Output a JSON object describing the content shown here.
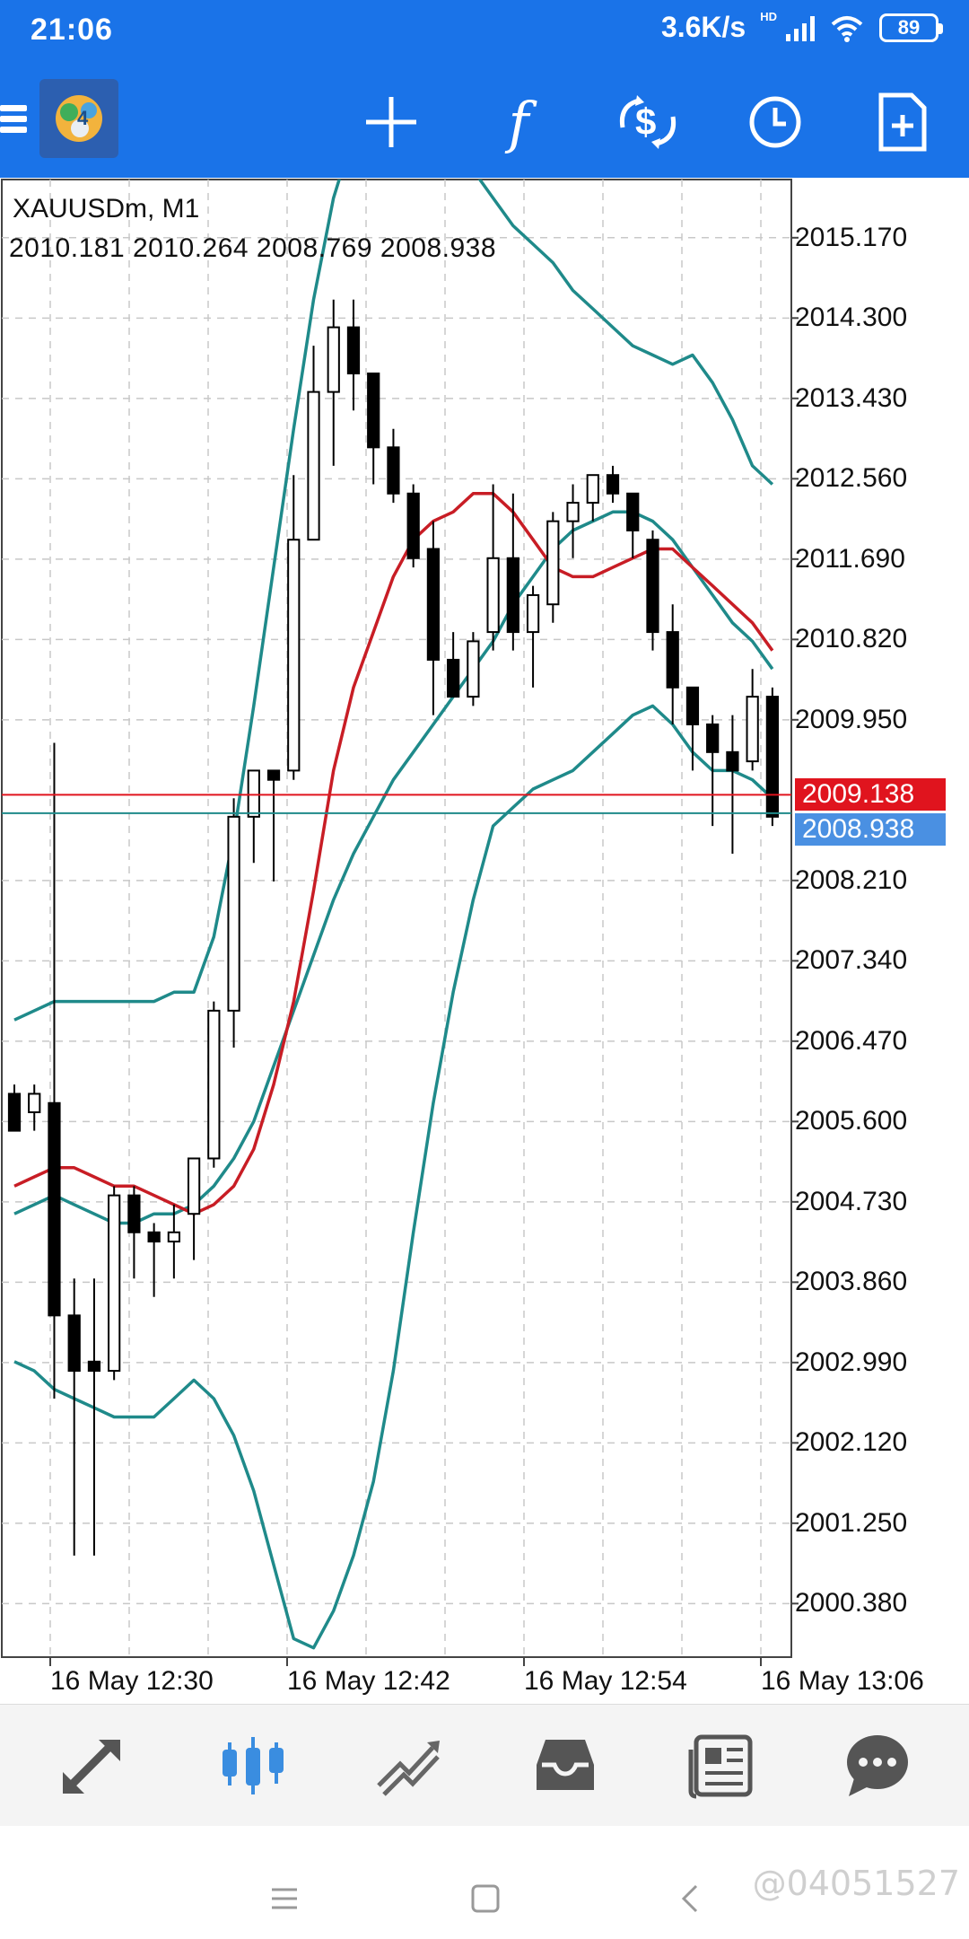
{
  "status_bar": {
    "time": "21:06",
    "net_speed": "3.6K/s",
    "hd": "HD",
    "battery": "89"
  },
  "toolbar": {
    "icons": [
      "menu-icon",
      "app-logo",
      "crosshair-icon",
      "function-icon",
      "trade-dollar-icon",
      "clock-icon",
      "new-document-icon"
    ],
    "function_glyph": "f"
  },
  "chart_header": {
    "symbol": "XAUUSDm, M1",
    "ohlc": "2010.181 2010.264 2008.769 2008.938"
  },
  "price_axis": {
    "labels": [
      "2015.170",
      "2014.300",
      "2013.430",
      "2012.560",
      "2011.690",
      "2010.820",
      "2009.950",
      "2008.210",
      "2007.340",
      "2006.470",
      "2005.600",
      "2004.730",
      "2003.860",
      "2002.990",
      "2002.120",
      "2001.250",
      "2000.380"
    ],
    "ask_tag": "2009.138",
    "bid_tag": "2008.938"
  },
  "time_axis": {
    "labels": [
      "16 May 12:30",
      "16 May 12:42",
      "16 May 12:54",
      "16 May 13:06"
    ]
  },
  "colors": {
    "header_blue": "#1a73e8",
    "bollinger": "#1f8a8a",
    "ma_red": "#c81d25",
    "ask_red": "#e0141e",
    "bid_blue": "#4a90e2"
  },
  "bottom_nav": {
    "items": [
      "quotes-icon",
      "chart-icon",
      "trade-icon",
      "history-icon",
      "news-icon",
      "chat-icon"
    ],
    "active": "chart-icon"
  },
  "system_nav": {
    "items": [
      "menu-icon",
      "home-icon",
      "back-icon"
    ]
  },
  "watermark": "@04051527",
  "chart_data": {
    "type": "candlestick",
    "title": "XAUUSDm, M1",
    "ylim": [
      1999.8,
      2015.8
    ],
    "x_ticks": [
      "16 May 12:30",
      "16 May 12:42",
      "16 May 12:54",
      "16 May 13:06"
    ],
    "candles": [
      {
        "o": 2005.9,
        "h": 2006.0,
        "l": 2005.5,
        "c": 2005.5
      },
      {
        "o": 2005.7,
        "h": 2006.0,
        "l": 2005.5,
        "c": 2005.9
      },
      {
        "o": 2005.8,
        "h": 2009.7,
        "l": 2002.6,
        "c": 2003.5
      },
      {
        "o": 2003.5,
        "h": 2003.9,
        "l": 2000.9,
        "c": 2002.9
      },
      {
        "o": 2003.0,
        "h": 2003.9,
        "l": 2000.9,
        "c": 2002.9
      },
      {
        "o": 2002.9,
        "h": 2004.9,
        "l": 2002.8,
        "c": 2004.8
      },
      {
        "o": 2004.8,
        "h": 2004.9,
        "l": 2003.9,
        "c": 2004.4
      },
      {
        "o": 2004.4,
        "h": 2004.5,
        "l": 2003.7,
        "c": 2004.3
      },
      {
        "o": 2004.3,
        "h": 2004.7,
        "l": 2003.9,
        "c": 2004.4
      },
      {
        "o": 2004.6,
        "h": 2005.2,
        "l": 2004.1,
        "c": 2005.2
      },
      {
        "o": 2005.2,
        "h": 2006.9,
        "l": 2005.1,
        "c": 2006.8
      },
      {
        "o": 2006.8,
        "h": 2009.1,
        "l": 2006.4,
        "c": 2008.9
      },
      {
        "o": 2008.9,
        "h": 2009.3,
        "l": 2008.4,
        "c": 2009.4
      },
      {
        "o": 2009.4,
        "h": 2009.4,
        "l": 2008.2,
        "c": 2009.3
      },
      {
        "o": 2009.4,
        "h": 2012.6,
        "l": 2009.3,
        "c": 2011.9
      },
      {
        "o": 2011.9,
        "h": 2014.0,
        "l": 2011.9,
        "c": 2013.5
      },
      {
        "o": 2013.5,
        "h": 2014.5,
        "l": 2012.7,
        "c": 2014.2
      },
      {
        "o": 2014.2,
        "h": 2014.5,
        "l": 2013.3,
        "c": 2013.7
      },
      {
        "o": 2013.7,
        "h": 2013.7,
        "l": 2012.5,
        "c": 2012.9
      },
      {
        "o": 2012.9,
        "h": 2013.1,
        "l": 2012.3,
        "c": 2012.4
      },
      {
        "o": 2012.4,
        "h": 2012.5,
        "l": 2011.6,
        "c": 2011.7
      },
      {
        "o": 2011.8,
        "h": 2012.1,
        "l": 2010.0,
        "c": 2010.6
      },
      {
        "o": 2010.6,
        "h": 2010.9,
        "l": 2010.2,
        "c": 2010.2
      },
      {
        "o": 2010.2,
        "h": 2010.9,
        "l": 2010.1,
        "c": 2010.8
      },
      {
        "o": 2010.9,
        "h": 2012.5,
        "l": 2010.7,
        "c": 2011.7
      },
      {
        "o": 2011.7,
        "h": 2012.4,
        "l": 2010.7,
        "c": 2010.9
      },
      {
        "o": 2010.9,
        "h": 2011.4,
        "l": 2010.3,
        "c": 2011.3
      },
      {
        "o": 2011.2,
        "h": 2012.2,
        "l": 2011.0,
        "c": 2012.1
      },
      {
        "o": 2012.1,
        "h": 2012.5,
        "l": 2011.7,
        "c": 2012.3
      },
      {
        "o": 2012.3,
        "h": 2012.6,
        "l": 2012.1,
        "c": 2012.6
      },
      {
        "o": 2012.6,
        "h": 2012.7,
        "l": 2012.3,
        "c": 2012.4
      },
      {
        "o": 2012.4,
        "h": 2012.4,
        "l": 2011.7,
        "c": 2012.0
      },
      {
        "o": 2011.9,
        "h": 2012.0,
        "l": 2010.7,
        "c": 2010.9
      },
      {
        "o": 2010.9,
        "h": 2011.2,
        "l": 2009.9,
        "c": 2010.3
      },
      {
        "o": 2010.3,
        "h": 2010.3,
        "l": 2009.4,
        "c": 2009.9
      },
      {
        "o": 2009.9,
        "h": 2010.0,
        "l": 2008.8,
        "c": 2009.6
      },
      {
        "o": 2009.6,
        "h": 2010.0,
        "l": 2008.5,
        "c": 2009.4
      },
      {
        "o": 2009.5,
        "h": 2010.5,
        "l": 2009.4,
        "c": 2010.2
      },
      {
        "o": 2010.2,
        "h": 2010.3,
        "l": 2008.8,
        "c": 2008.9
      }
    ],
    "ma": [
      2004.9,
      2005.0,
      2005.1,
      2005.1,
      2005.0,
      2004.9,
      2004.9,
      2004.8,
      2004.7,
      2004.6,
      2004.7,
      2004.9,
      2005.3,
      2006.0,
      2006.9,
      2008.1,
      2009.4,
      2010.3,
      2010.9,
      2011.5,
      2011.9,
      2012.1,
      2012.2,
      2012.4,
      2012.4,
      2012.2,
      2011.9,
      2011.6,
      2011.5,
      2011.5,
      2011.6,
      2011.7,
      2011.8,
      2011.8,
      2011.6,
      2011.4,
      2011.2,
      2011.0,
      2010.7
    ],
    "bb_mid": [
      2004.6,
      2004.7,
      2004.8,
      2004.7,
      2004.6,
      2004.5,
      2004.5,
      2004.6,
      2004.6,
      2004.7,
      2004.9,
      2005.2,
      2005.6,
      2006.2,
      2006.8,
      2007.4,
      2008.0,
      2008.5,
      2008.9,
      2009.3,
      2009.6,
      2009.9,
      2010.2,
      2010.5,
      2010.8,
      2011.2,
      2011.5,
      2011.8,
      2012.0,
      2012.1,
      2012.2,
      2012.2,
      2012.1,
      2011.9,
      2011.6,
      2011.3,
      2011.0,
      2010.8,
      2010.5
    ],
    "bb_upper": [
      2006.7,
      2006.8,
      2006.9,
      2006.9,
      2006.9,
      2006.9,
      2006.9,
      2006.9,
      2007.0,
      2007.0,
      2007.6,
      2008.7,
      2010.1,
      2011.6,
      2013.1,
      2014.5,
      2015.6,
      2016.3,
      2016.7,
      2016.7,
      2016.6,
      2016.4,
      2016.2,
      2015.9,
      2015.6,
      2015.3,
      2015.1,
      2014.9,
      2014.6,
      2014.4,
      2014.2,
      2014.0,
      2013.9,
      2013.8,
      2013.9,
      2013.6,
      2013.2,
      2012.7,
      2012.5
    ],
    "bb_lower": [
      2003.0,
      2002.9,
      2002.7,
      2002.6,
      2002.5,
      2002.4,
      2002.4,
      2002.4,
      2002.6,
      2002.8,
      2002.6,
      2002.2,
      2001.6,
      2000.8,
      2000.0,
      1999.9,
      2000.3,
      2000.9,
      2001.7,
      2002.9,
      2004.4,
      2005.8,
      2007.0,
      2008.0,
      2008.8,
      2009.0,
      2009.2,
      2009.3,
      2009.4,
      2009.6,
      2009.8,
      2010.0,
      2010.1,
      2009.9,
      2009.6,
      2009.4,
      2009.4,
      2009.3,
      2009.1
    ],
    "ask_price": 2009.138,
    "bid_price": 2008.938,
    "grid": true
  }
}
